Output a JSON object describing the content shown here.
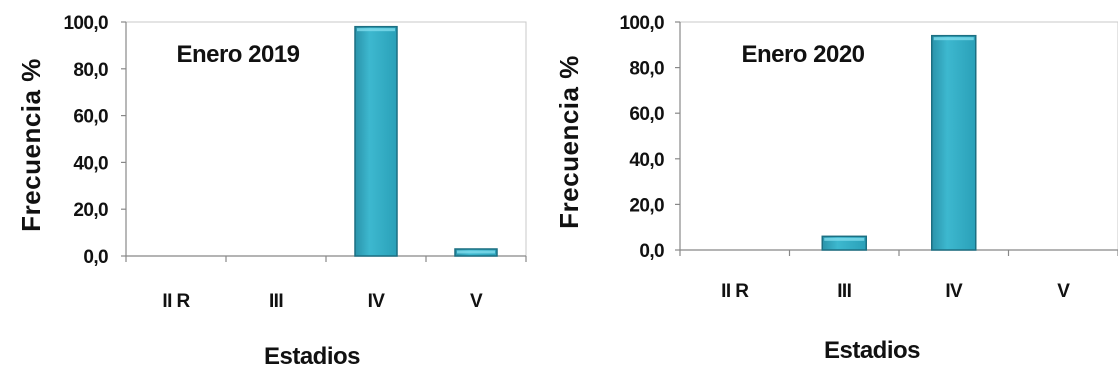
{
  "colors": {
    "bar_fill": "#3db8cf",
    "bar_top": "#7fdcec",
    "bar_stroke": "#1c6f82",
    "axis": "#888888",
    "frame": "#9a9a9a",
    "text": "#111111"
  },
  "chart_data": [
    {
      "type": "bar",
      "title": "Enero 2019",
      "xlabel": "Estadios",
      "ylabel": "Frecuencia %",
      "categories": [
        "II R",
        "III",
        "IV",
        "V"
      ],
      "values": [
        0.0,
        0.0,
        98.0,
        3.0
      ],
      "ylim": [
        0,
        100
      ],
      "yticks": [
        "0,0",
        "20,0",
        "40,0",
        "60,0",
        "80,0",
        "100,0"
      ],
      "grid": false,
      "legend": "none"
    },
    {
      "type": "bar",
      "title": "Enero 2020",
      "xlabel": "Estadios",
      "ylabel": "Frecuencia %",
      "categories": [
        "II R",
        "III",
        "IV",
        "V"
      ],
      "values": [
        0.0,
        6.0,
        94.0,
        0.0
      ],
      "ylim": [
        0,
        100
      ],
      "yticks": [
        "0,0",
        "20,0",
        "40,0",
        "60,0",
        "80,0",
        "100,0"
      ],
      "grid": false,
      "legend": "none"
    }
  ]
}
